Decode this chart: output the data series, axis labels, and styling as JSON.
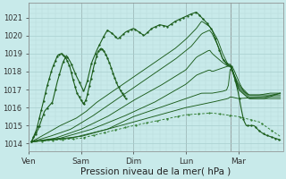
{
  "background_color": "#c8eaea",
  "grid_color_major": "#a8cece",
  "grid_color_minor": "#b8d8d8",
  "line_color": "#1a5c1a",
  "line_color_dashed": "#2d7a2d",
  "ylabel_ticks": [
    1014,
    1015,
    1016,
    1017,
    1018,
    1019,
    1020,
    1021
  ],
  "ylim": [
    1013.6,
    1021.8
  ],
  "xlim": [
    0.0,
    4.85
  ],
  "xtick_labels": [
    "Ven",
    "Sam",
    "Dim",
    "Lun",
    "Mar"
  ],
  "xtick_positions": [
    0.0,
    1.0,
    2.0,
    3.0,
    4.0
  ],
  "xlabel": "Pression niveau de la mer( hPa )",
  "xlabel_fontsize": 7.5,
  "tick_fontsize": 6.5,
  "ytick_fontsize": 6.0,
  "figsize": [
    3.2,
    2.0
  ],
  "dpi": 100
}
